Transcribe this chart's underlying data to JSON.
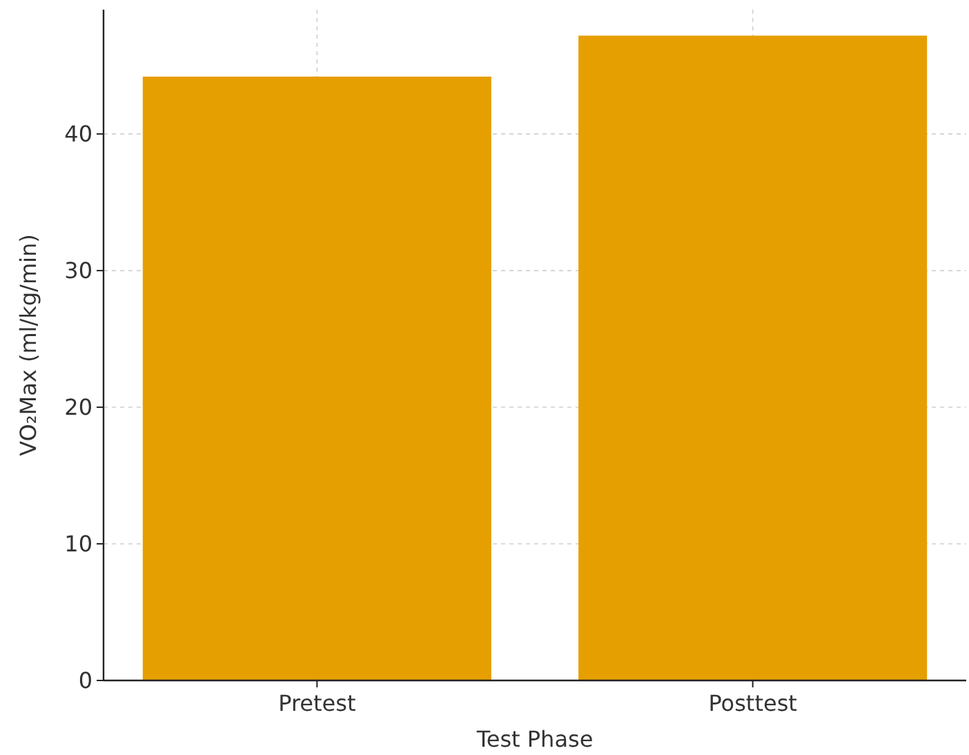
{
  "chart_data": {
    "type": "bar",
    "xlabel": "Test Phase",
    "ylabel": "VO₂Max (ml/kg/min)",
    "categories": [
      "Pretest",
      "Posttest"
    ],
    "values": [
      44.2,
      47.2
    ],
    "color": "#e69f00",
    "ylim": [
      0,
      49.1
    ],
    "yticks": [
      0,
      10,
      20,
      30,
      40
    ],
    "grid": true
  }
}
